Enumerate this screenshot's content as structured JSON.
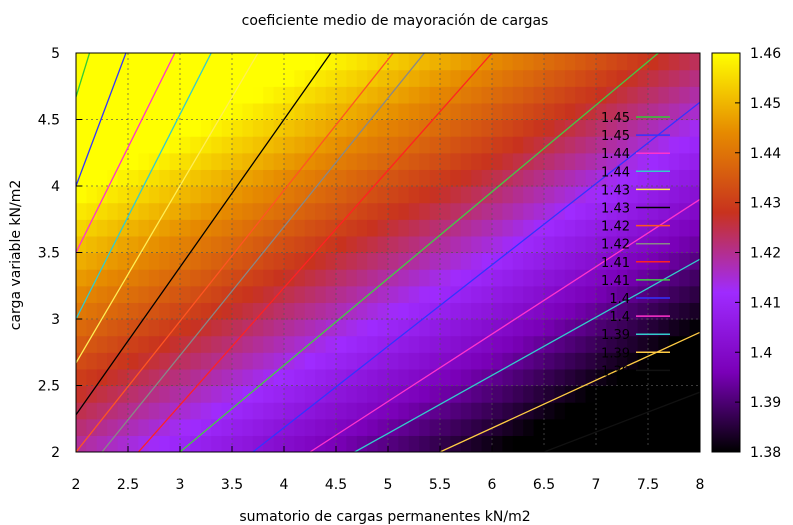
{
  "chart_data": {
    "type": "heatmap",
    "title": "coeficiente medio de mayoración de cargas",
    "xlabel": "sumatorio de cargas permanentes kN/m2",
    "ylabel": "carga variable kN/m2",
    "xlim": [
      2,
      8
    ],
    "ylim": [
      2,
      5
    ],
    "x_ticks": [
      "2",
      "2.5",
      "3",
      "3.5",
      "4",
      "4.5",
      "5",
      "5.5",
      "6",
      "6.5",
      "7",
      "7.5",
      "8"
    ],
    "y_ticks": [
      "2",
      "2.5",
      "3",
      "3.5",
      "4",
      "4.5",
      "5"
    ],
    "grid": true,
    "colorbar": {
      "min": 1.38,
      "max": 1.46,
      "ticks": [
        "1.38",
        "1.39",
        "1.4",
        "1.41",
        "1.42",
        "1.43",
        "1.44",
        "1.45",
        "1.46"
      ],
      "palette": [
        "#000000",
        "#7a00b8",
        "#9f2bff",
        "#c8321e",
        "#e68a00",
        "#ffff00"
      ]
    },
    "contour_lines": [
      {
        "label": "1.45",
        "color": "#33cc33",
        "points": [
          [
            2,
            4.67
          ],
          [
            2.13,
            5
          ]
        ]
      },
      {
        "label": "1.45",
        "color": "#3333ff",
        "points": [
          [
            2,
            4.0
          ],
          [
            2.48,
            5
          ]
        ]
      },
      {
        "label": "1.44",
        "color": "#ff33cc",
        "points": [
          [
            2,
            3.5
          ],
          [
            2.95,
            5
          ]
        ]
      },
      {
        "label": "1.44",
        "color": "#33cccc",
        "points": [
          [
            2,
            3.0
          ],
          [
            3.3,
            5
          ]
        ]
      },
      {
        "label": "1.43",
        "color": "#ffee55",
        "points": [
          [
            2,
            2.67
          ],
          [
            3.75,
            5
          ]
        ]
      },
      {
        "label": "1.43",
        "color": "#000000",
        "points": [
          [
            2,
            2.28
          ],
          [
            4.45,
            5
          ]
        ]
      },
      {
        "label": "1.42",
        "color": "#ff5522",
        "points": [
          [
            2,
            2.0
          ],
          [
            5.05,
            5
          ]
        ]
      },
      {
        "label": "1.42",
        "color": "#888888",
        "points": [
          [
            2.25,
            2.0
          ],
          [
            5.35,
            5
          ]
        ]
      },
      {
        "label": "1.41",
        "color": "#ff2222",
        "points": [
          [
            2.6,
            2.0
          ],
          [
            6.0,
            5
          ]
        ]
      },
      {
        "label": "1.41",
        "color": "#44cc44",
        "points": [
          [
            3.0,
            2.0
          ],
          [
            7.6,
            5
          ]
        ]
      },
      {
        "label": "1.4",
        "color": "#3333ff",
        "points": [
          [
            3.7,
            2.0
          ],
          [
            8.0,
            4.63
          ]
        ]
      },
      {
        "label": "1.4",
        "color": "#ff33cc",
        "points": [
          [
            4.25,
            2.0
          ],
          [
            8.0,
            3.9
          ]
        ]
      },
      {
        "label": "1.39",
        "color": "#33cccc",
        "points": [
          [
            4.68,
            2.0
          ],
          [
            8.0,
            3.45
          ]
        ]
      },
      {
        "label": "1.39",
        "color": "#ffcc44",
        "points": [
          [
            5.5,
            2.0
          ],
          [
            8.0,
            2.9
          ]
        ]
      },
      {
        "label": "1.39",
        "color": "#111111",
        "points": [
          [
            6.5,
            2.0
          ],
          [
            8.0,
            2.45
          ]
        ]
      }
    ]
  }
}
